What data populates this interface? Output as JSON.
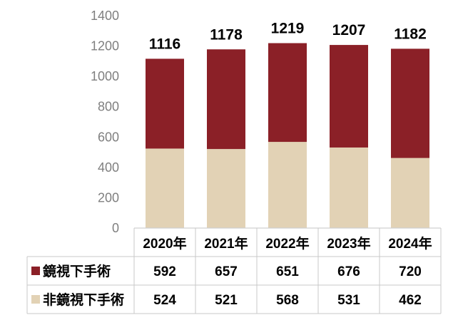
{
  "chart_data": {
    "type": "stacked-bar-with-data-table",
    "categories": [
      "2020年",
      "2021年",
      "2022年",
      "2023年",
      "2024年"
    ],
    "series": [
      {
        "name": "鏡視下手術",
        "values": [
          592,
          657,
          651,
          676,
          720
        ],
        "color": "#8b2027"
      },
      {
        "name": "非鏡視下手術",
        "values": [
          524,
          521,
          568,
          531,
          462
        ],
        "color": "#e2d2b5"
      }
    ],
    "totals": [
      "1116",
      "1178",
      "1219",
      "1207",
      "1182"
    ],
    "ylim": [
      0,
      1400
    ],
    "yticks": [
      "0",
      "200",
      "400",
      "600",
      "800",
      "1000",
      "1200",
      "1400"
    ],
    "grid": false,
    "legend": "data-table-left"
  }
}
